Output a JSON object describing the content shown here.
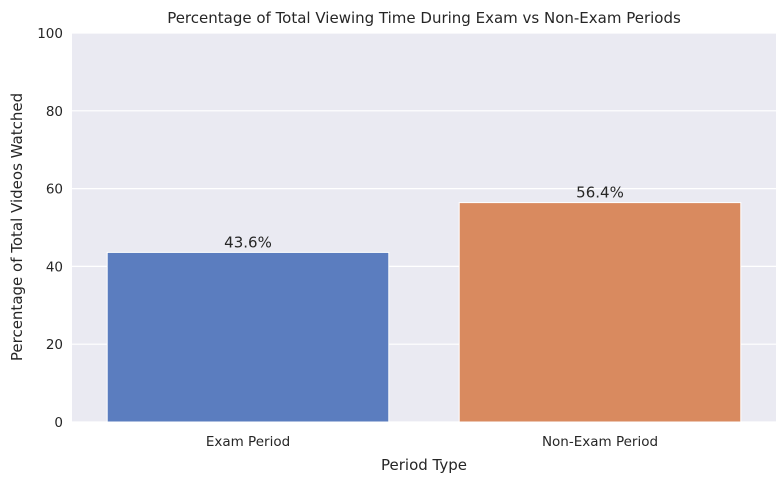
{
  "chart_data": {
    "type": "bar",
    "title": "Percentage of Total Viewing Time During Exam vs Non-Exam Periods",
    "xlabel": "Period Type",
    "ylabel": "Percentage of Total Videos Watched",
    "categories": [
      "Exam Period",
      "Non-Exam Period"
    ],
    "values": [
      43.6,
      56.4
    ],
    "data_labels": [
      "43.6%",
      "56.4%"
    ],
    "colors": [
      "#5b7dbf",
      "#d98a5f"
    ],
    "ylim": [
      0,
      100
    ],
    "yticks": [
      "0",
      "20",
      "40",
      "60",
      "80",
      "100"
    ],
    "grid": true,
    "background": "#eaeaf2"
  }
}
